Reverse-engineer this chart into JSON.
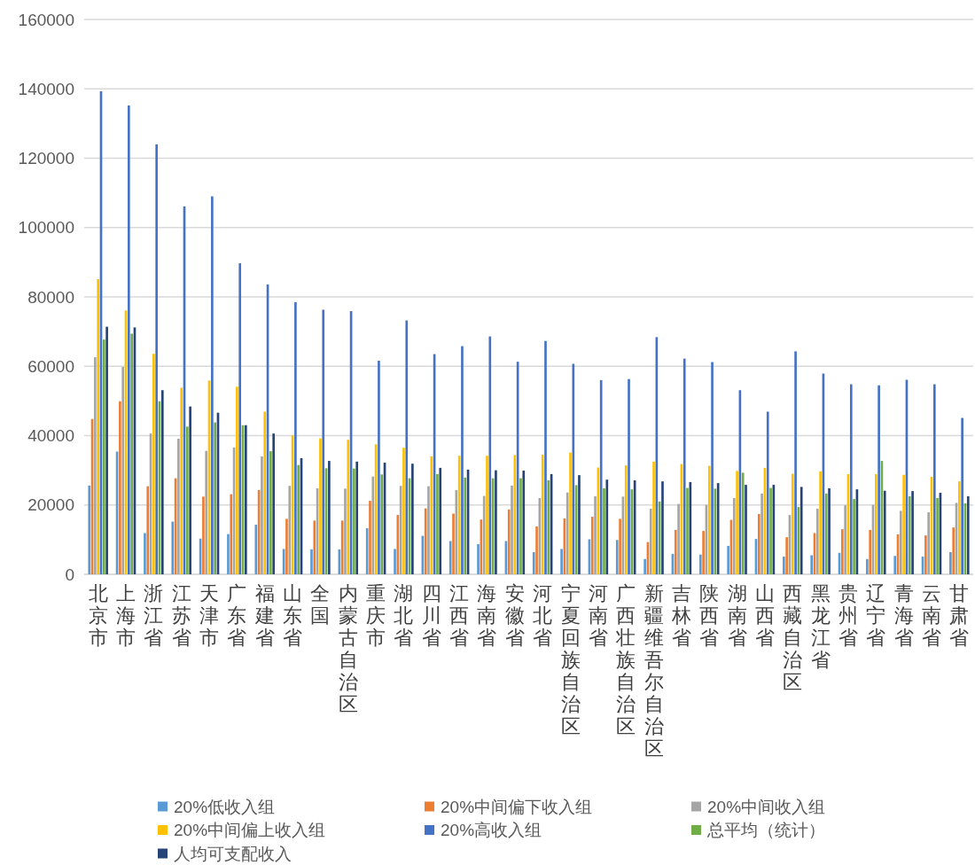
{
  "chart_data": {
    "type": "bar",
    "categories": [
      "北京市",
      "上海市",
      "浙江省",
      "江苏省",
      "天津市",
      "广东省",
      "福建省",
      "山东省",
      "全国",
      "内蒙古自治区",
      "重庆市",
      "湖北省",
      "四川省",
      "江西省",
      "海南省",
      "安徽省",
      "河北省",
      "宁夏回族自治区",
      "河南省",
      "广西壮族自治区",
      "新疆维吾尔自治区",
      "吉林省",
      "陕西省",
      "湖南省",
      "山西省",
      "西藏自治区",
      "黑龙江省",
      "贵州省",
      "辽宁省",
      "青海省",
      "云南省",
      "甘肃省"
    ],
    "series": [
      {
        "name": "20%低收入组",
        "color": "#5b9bd5",
        "values": [
          25600,
          35400,
          11900,
          15200,
          10300,
          11600,
          14300,
          7300,
          7200,
          7200,
          13300,
          7300,
          11100,
          9600,
          8700,
          9600,
          6400,
          7300,
          10100,
          9900,
          4400,
          5900,
          5700,
          8200,
          10200,
          5100,
          5500,
          6200,
          4400,
          5300,
          5100,
          6400
        ]
      },
      {
        "name": "20%中间偏下收入组",
        "color": "#ed7d31",
        "values": [
          44800,
          49900,
          25400,
          27700,
          22400,
          23100,
          24300,
          16000,
          15500,
          15500,
          21200,
          17100,
          19000,
          17500,
          15800,
          18700,
          13800,
          16100,
          16600,
          16000,
          9300,
          12800,
          12500,
          15700,
          17400,
          10700,
          11900,
          13000,
          12800,
          11500,
          11200,
          13500
        ]
      },
      {
        "name": "20%中间收入组",
        "color": "#a5a5a5",
        "values": [
          62600,
          59800,
          40600,
          39100,
          35600,
          36600,
          34000,
          25500,
          24800,
          24700,
          28200,
          25500,
          25400,
          24300,
          22600,
          25600,
          22000,
          23600,
          22500,
          22400,
          18900,
          20300,
          20000,
          22000,
          23300,
          17100,
          18900,
          19900,
          20000,
          18300,
          17900,
          20600
        ]
      },
      {
        "name": "20%中间偏上收入组",
        "color": "#ffc000",
        "values": [
          85100,
          76100,
          63600,
          53800,
          55900,
          54100,
          46900,
          40100,
          39200,
          38800,
          37500,
          36500,
          34000,
          34200,
          34200,
          34400,
          34500,
          35100,
          30800,
          31400,
          32500,
          31800,
          31300,
          29800,
          30700,
          29000,
          29700,
          28900,
          28900,
          28700,
          28100,
          26800
        ]
      },
      {
        "name": "20%高收入组",
        "color": "#4472c4",
        "values": [
          139300,
          135200,
          124000,
          106100,
          109000,
          89700,
          83600,
          78500,
          76300,
          75900,
          61600,
          73200,
          63500,
          65800,
          68600,
          61300,
          67300,
          60700,
          56000,
          56300,
          68400,
          62200,
          61200,
          53100,
          46900,
          64300,
          57900,
          54800,
          54500,
          56100,
          54800,
          45100
        ]
      },
      {
        "name": "总平均（统计）",
        "color": "#70ad47",
        "values": [
          67700,
          69400,
          49900,
          42600,
          43800,
          43000,
          35500,
          31500,
          30600,
          30500,
          28800,
          27700,
          28900,
          27900,
          27700,
          27700,
          27100,
          25700,
          24800,
          24500,
          21000,
          24900,
          24700,
          29300,
          24900,
          19400,
          23300,
          21700,
          32700,
          22500,
          22000,
          20500
        ]
      },
      {
        "name": "人均可支配收入",
        "color": "#264478",
        "values": [
          71400,
          71200,
          53100,
          48400,
          46600,
          43000,
          40600,
          33500,
          32700,
          32500,
          32200,
          31900,
          30700,
          30200,
          30000,
          29900,
          28900,
          28600,
          27300,
          27100,
          26800,
          26600,
          26300,
          25800,
          25800,
          25200,
          24800,
          24500,
          24100,
          24000,
          23500,
          22500
        ]
      }
    ],
    "ylim": [
      0,
      160000
    ],
    "yticks": [
      0,
      20000,
      40000,
      60000,
      80000,
      100000,
      120000,
      140000,
      160000
    ],
    "grid": "y",
    "legend": "bottom"
  }
}
